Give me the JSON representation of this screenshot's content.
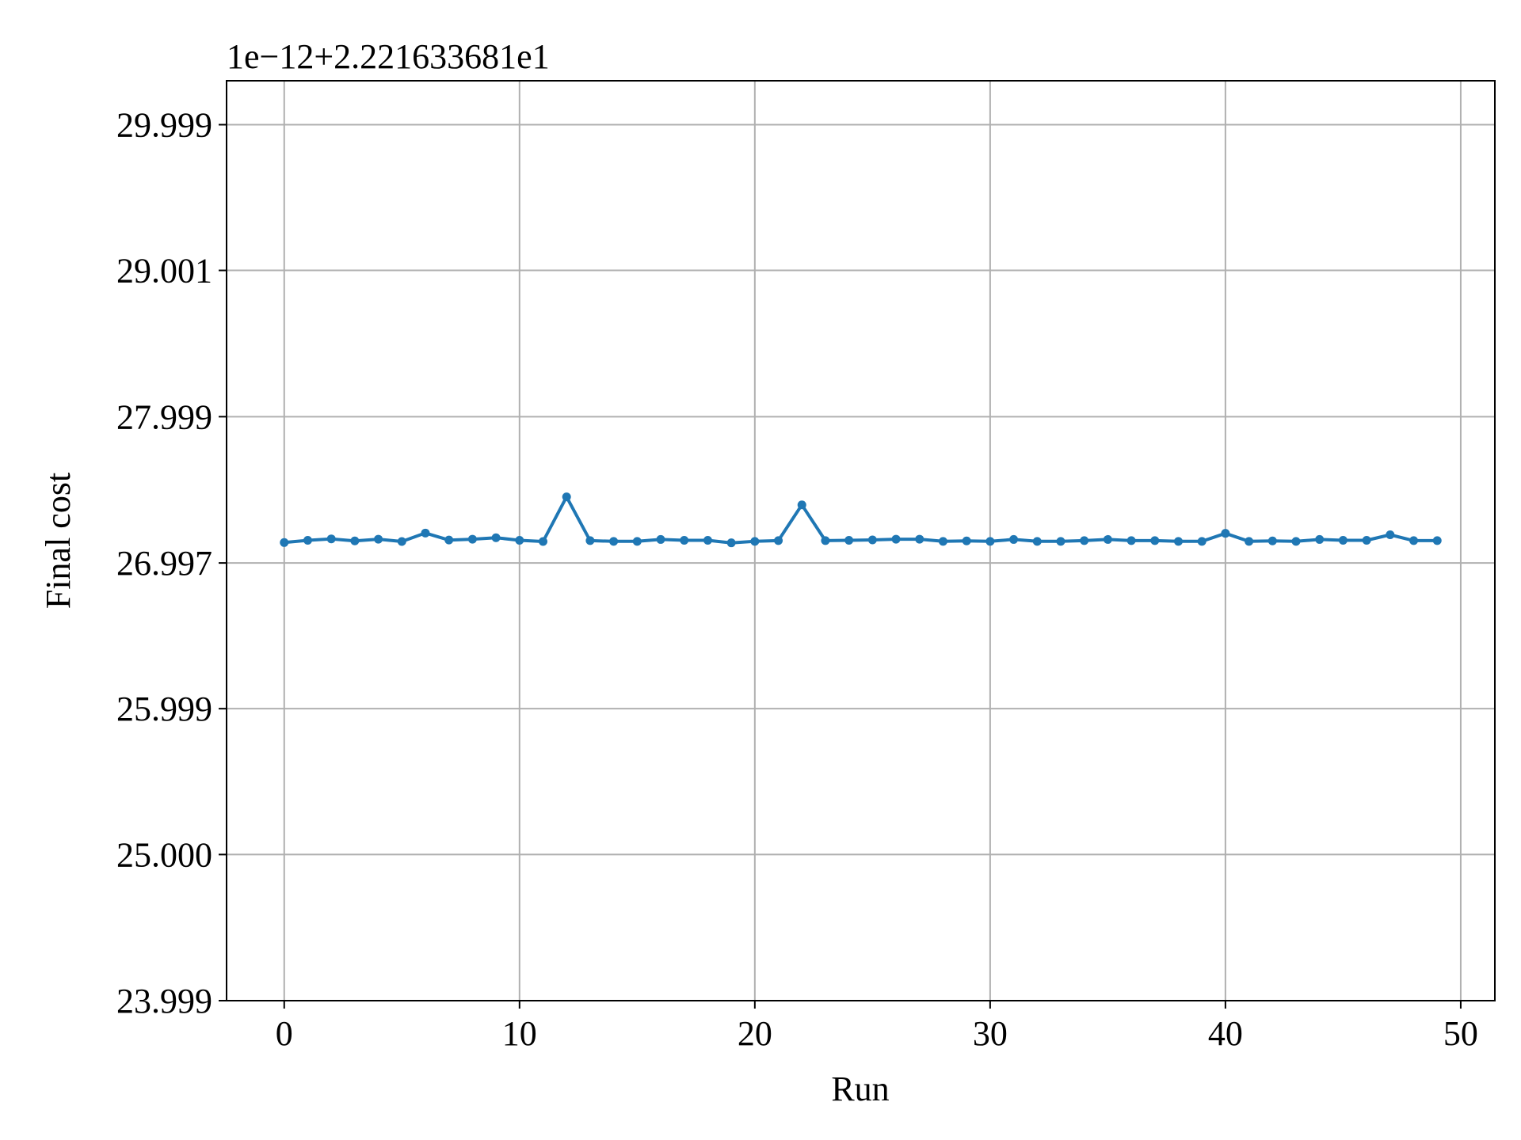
{
  "chart_data": {
    "type": "line",
    "title": "",
    "xlabel": "Run",
    "ylabel": "Final cost",
    "offset_text": "1e−12+2.221633681e1",
    "xlim": [
      -2.45,
      51.45
    ],
    "ylim": [
      23.999,
      30.3
    ],
    "x_ticks": [
      0,
      10,
      20,
      30,
      40,
      50
    ],
    "x_tick_labels": [
      "0",
      "10",
      "20",
      "30",
      "40",
      "50"
    ],
    "y_ticks": [
      23.999,
      25.0,
      25.999,
      26.997,
      27.999,
      29.001,
      29.999
    ],
    "y_tick_labels": [
      "23.999",
      "25.000",
      "25.999",
      "26.997",
      "27.999",
      "29.001",
      "29.999"
    ],
    "grid": true,
    "legend": null,
    "colors": {
      "series": "#1f77b4",
      "grid": "#b0b0b0",
      "axes": "#000000"
    },
    "series": [
      {
        "name": "Final cost",
        "x": [
          0,
          1,
          2,
          3,
          4,
          5,
          6,
          7,
          8,
          9,
          10,
          11,
          12,
          13,
          14,
          15,
          16,
          17,
          18,
          19,
          20,
          21,
          22,
          23,
          24,
          25,
          26,
          27,
          28,
          29,
          30,
          31,
          32,
          33,
          34,
          35,
          36,
          37,
          38,
          39,
          40,
          41,
          42,
          43,
          44,
          45,
          46,
          47,
          48,
          49
        ],
        "values": [
          27.137,
          27.152,
          27.162,
          27.148,
          27.16,
          27.144,
          27.202,
          27.154,
          27.16,
          27.17,
          27.152,
          27.144,
          27.45,
          27.15,
          27.145,
          27.145,
          27.158,
          27.152,
          27.152,
          27.135,
          27.145,
          27.15,
          27.395,
          27.15,
          27.152,
          27.155,
          27.16,
          27.16,
          27.145,
          27.148,
          27.145,
          27.158,
          27.145,
          27.145,
          27.15,
          27.158,
          27.15,
          27.15,
          27.145,
          27.145,
          27.2,
          27.145,
          27.148,
          27.145,
          27.158,
          27.152,
          27.152,
          27.19,
          27.15,
          27.15
        ]
      }
    ]
  }
}
